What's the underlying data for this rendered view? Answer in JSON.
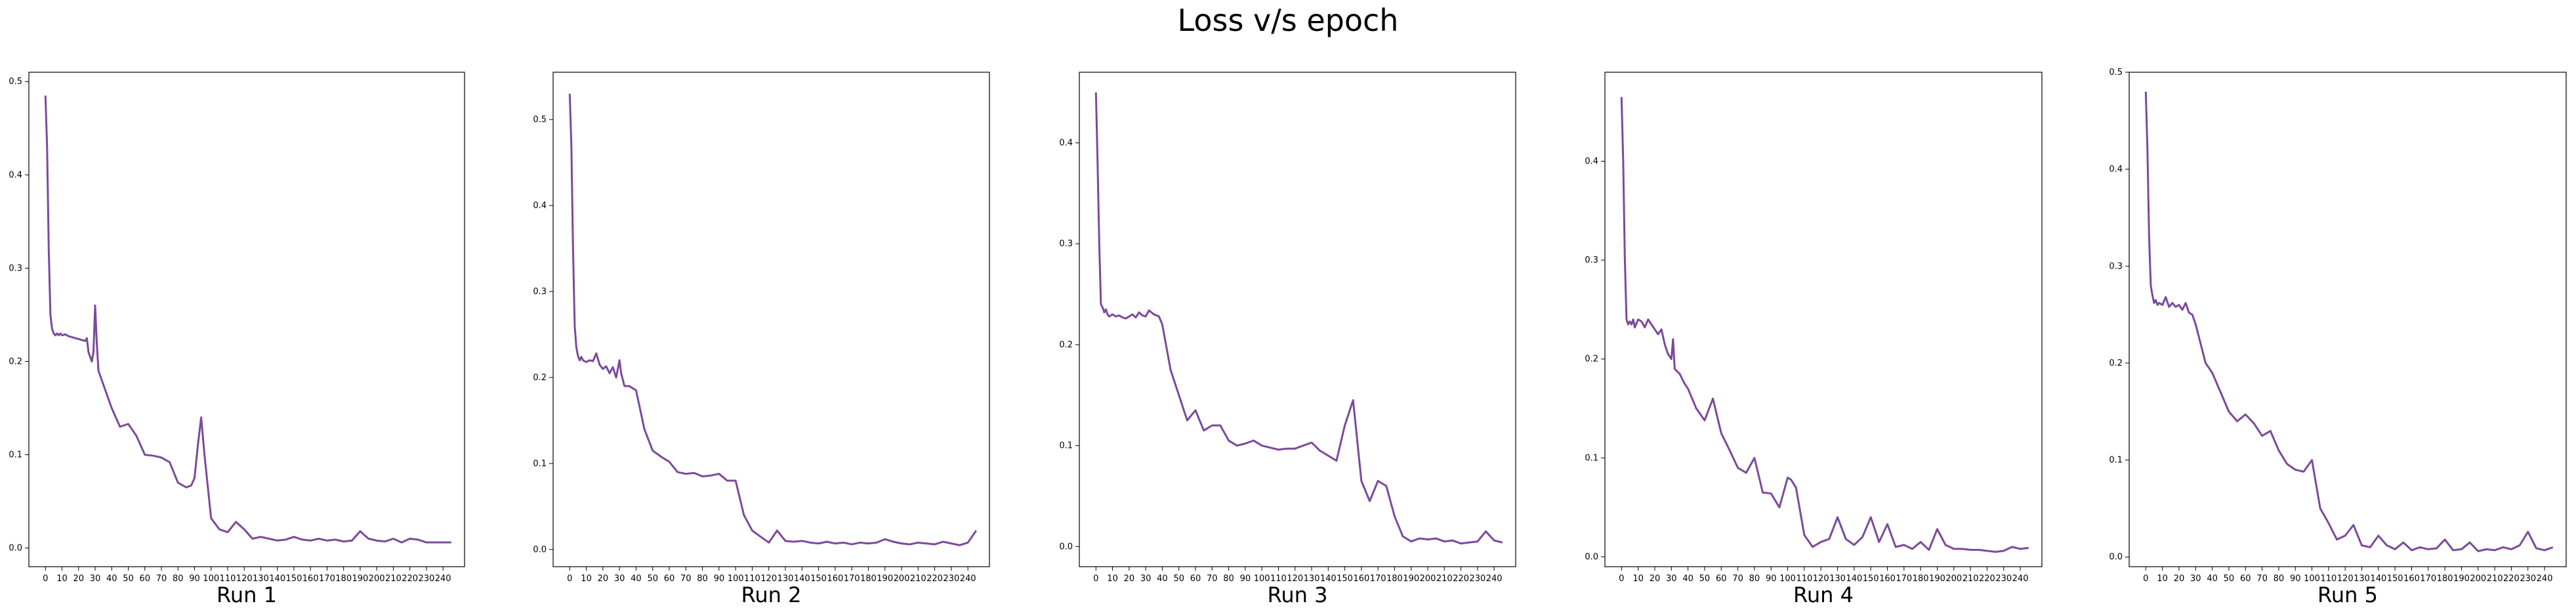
{
  "figure": {
    "title": "Loss v/s epoch"
  },
  "chart_data": [
    {
      "type": "line",
      "xlabel": "Run 1",
      "ylabel": "",
      "xlim": [
        -10,
        253
      ],
      "ylim": [
        -0.02,
        0.51
      ],
      "x_ticks": [
        0,
        10,
        20,
        30,
        40,
        50,
        60,
        70,
        80,
        90,
        100,
        110,
        120,
        130,
        140,
        150,
        160,
        170,
        180,
        190,
        200,
        210,
        220,
        230,
        240
      ],
      "y_ticks": [
        0.0,
        0.1,
        0.2,
        0.3,
        0.4,
        0.5
      ],
      "color": "#7b4a9c",
      "x": [
        0,
        1,
        2,
        3,
        4,
        5,
        6,
        7,
        8,
        9,
        10,
        12,
        14,
        16,
        18,
        20,
        22,
        24,
        25,
        26,
        27,
        28,
        29,
        30,
        31,
        32,
        35,
        38,
        40,
        45,
        50,
        55,
        60,
        65,
        70,
        75,
        80,
        85,
        88,
        90,
        92,
        94,
        96,
        100,
        105,
        110,
        115,
        120,
        125,
        130,
        135,
        140,
        145,
        150,
        155,
        160,
        165,
        170,
        175,
        180,
        185,
        190,
        195,
        200,
        205,
        210,
        215,
        220,
        225,
        230,
        235,
        240,
        245
      ],
      "y": [
        0.485,
        0.43,
        0.32,
        0.25,
        0.235,
        0.23,
        0.228,
        0.23,
        0.228,
        0.23,
        0.228,
        0.229,
        0.227,
        0.226,
        0.225,
        0.224,
        0.223,
        0.222,
        0.225,
        0.21,
        0.205,
        0.2,
        0.21,
        0.26,
        0.22,
        0.19,
        0.175,
        0.16,
        0.15,
        0.13,
        0.133,
        0.12,
        0.1,
        0.099,
        0.097,
        0.092,
        0.07,
        0.065,
        0.067,
        0.075,
        0.11,
        0.14,
        0.1,
        0.032,
        0.02,
        0.017,
        0.028,
        0.02,
        0.01,
        0.012,
        0.01,
        0.008,
        0.009,
        0.012,
        0.009,
        0.008,
        0.01,
        0.008,
        0.009,
        0.007,
        0.008,
        0.018,
        0.01,
        0.008,
        0.007,
        0.01,
        0.006,
        0.01,
        0.009,
        0.006,
        0.006,
        0.006,
        0.006
      ]
    },
    {
      "type": "line",
      "xlabel": "Run 2",
      "ylabel": "",
      "xlim": [
        -10,
        253
      ],
      "ylim": [
        -0.02,
        0.555
      ],
      "x_ticks": [
        0,
        10,
        20,
        30,
        40,
        50,
        60,
        70,
        80,
        90,
        100,
        110,
        120,
        130,
        140,
        150,
        160,
        170,
        180,
        190,
        200,
        210,
        220,
        230,
        240
      ],
      "y_ticks": [
        0.0,
        0.1,
        0.2,
        0.3,
        0.4,
        0.5
      ],
      "color": "#7b4a9c",
      "x": [
        0,
        1,
        2,
        3,
        4,
        5,
        6,
        7,
        8,
        10,
        12,
        14,
        16,
        18,
        20,
        22,
        24,
        26,
        28,
        30,
        31,
        33,
        36,
        40,
        45,
        50,
        55,
        60,
        65,
        70,
        75,
        80,
        85,
        90,
        95,
        100,
        105,
        110,
        115,
        120,
        125,
        130,
        135,
        140,
        145,
        150,
        155,
        160,
        165,
        170,
        175,
        180,
        185,
        190,
        195,
        200,
        205,
        210,
        215,
        220,
        225,
        230,
        235,
        240,
        245
      ],
      "y": [
        0.53,
        0.47,
        0.35,
        0.26,
        0.235,
        0.225,
        0.22,
        0.224,
        0.22,
        0.218,
        0.22,
        0.219,
        0.228,
        0.215,
        0.21,
        0.213,
        0.205,
        0.212,
        0.2,
        0.22,
        0.205,
        0.19,
        0.19,
        0.185,
        0.14,
        0.115,
        0.108,
        0.102,
        0.09,
        0.088,
        0.089,
        0.085,
        0.086,
        0.088,
        0.08,
        0.08,
        0.04,
        0.022,
        0.015,
        0.008,
        0.022,
        0.01,
        0.009,
        0.01,
        0.008,
        0.007,
        0.009,
        0.007,
        0.008,
        0.006,
        0.008,
        0.007,
        0.008,
        0.012,
        0.009,
        0.007,
        0.006,
        0.008,
        0.007,
        0.006,
        0.009,
        0.007,
        0.005,
        0.008,
        0.022
      ]
    },
    {
      "type": "line",
      "xlabel": "Run 3",
      "ylabel": "",
      "xlim": [
        -10,
        253
      ],
      "ylim": [
        -0.02,
        0.47
      ],
      "x_ticks": [
        0,
        10,
        20,
        30,
        40,
        50,
        60,
        70,
        80,
        90,
        100,
        110,
        120,
        130,
        140,
        150,
        160,
        170,
        180,
        190,
        200,
        210,
        220,
        230,
        240
      ],
      "y_ticks": [
        0.0,
        0.1,
        0.2,
        0.3,
        0.4
      ],
      "color": "#7b4a9c",
      "x": [
        0,
        1,
        2,
        3,
        4,
        5,
        6,
        7,
        8,
        10,
        12,
        14,
        16,
        18,
        20,
        22,
        24,
        26,
        28,
        30,
        32,
        35,
        38,
        40,
        45,
        50,
        55,
        60,
        65,
        70,
        75,
        80,
        85,
        90,
        95,
        100,
        105,
        110,
        115,
        120,
        125,
        130,
        135,
        140,
        145,
        150,
        155,
        160,
        165,
        170,
        175,
        180,
        185,
        190,
        195,
        200,
        205,
        210,
        215,
        220,
        225,
        230,
        235,
        240,
        245
      ],
      "y": [
        0.45,
        0.38,
        0.3,
        0.24,
        0.237,
        0.232,
        0.235,
        0.23,
        0.228,
        0.23,
        0.228,
        0.229,
        0.227,
        0.226,
        0.228,
        0.23,
        0.227,
        0.232,
        0.229,
        0.228,
        0.234,
        0.23,
        0.228,
        0.22,
        0.175,
        0.15,
        0.125,
        0.135,
        0.115,
        0.12,
        0.12,
        0.105,
        0.1,
        0.102,
        0.105,
        0.1,
        0.098,
        0.096,
        0.097,
        0.097,
        0.1,
        0.103,
        0.095,
        0.09,
        0.085,
        0.12,
        0.145,
        0.065,
        0.045,
        0.065,
        0.06,
        0.03,
        0.01,
        0.005,
        0.008,
        0.007,
        0.008,
        0.005,
        0.006,
        0.003,
        0.004,
        0.005,
        0.015,
        0.006,
        0.004
      ]
    },
    {
      "type": "line",
      "xlabel": "Run 4",
      "ylabel": "",
      "xlim": [
        -10,
        253
      ],
      "ylim": [
        -0.01,
        0.49
      ],
      "x_ticks": [
        0,
        10,
        20,
        30,
        40,
        50,
        60,
        70,
        80,
        90,
        100,
        110,
        120,
        130,
        140,
        150,
        160,
        170,
        180,
        190,
        200,
        210,
        220,
        230,
        240
      ],
      "y_ticks": [
        0.0,
        0.1,
        0.2,
        0.3,
        0.4
      ],
      "color": "#7b4a9c",
      "x": [
        0,
        1,
        2,
        3,
        4,
        5,
        6,
        7,
        8,
        10,
        12,
        14,
        16,
        18,
        20,
        22,
        24,
        26,
        28,
        30,
        31,
        32,
        35,
        38,
        40,
        45,
        50,
        55,
        60,
        65,
        70,
        75,
        80,
        85,
        90,
        95,
        100,
        102,
        105,
        110,
        115,
        120,
        125,
        130,
        135,
        140,
        145,
        150,
        155,
        160,
        165,
        170,
        175,
        180,
        185,
        190,
        195,
        200,
        205,
        210,
        215,
        220,
        225,
        230,
        235,
        240,
        245
      ],
      "y": [
        0.465,
        0.4,
        0.3,
        0.24,
        0.235,
        0.238,
        0.235,
        0.24,
        0.232,
        0.24,
        0.238,
        0.232,
        0.24,
        0.235,
        0.23,
        0.225,
        0.23,
        0.215,
        0.205,
        0.2,
        0.22,
        0.19,
        0.185,
        0.175,
        0.17,
        0.15,
        0.138,
        0.16,
        0.125,
        0.108,
        0.09,
        0.085,
        0.1,
        0.065,
        0.064,
        0.05,
        0.08,
        0.078,
        0.07,
        0.022,
        0.01,
        0.015,
        0.018,
        0.04,
        0.018,
        0.012,
        0.02,
        0.04,
        0.015,
        0.033,
        0.01,
        0.012,
        0.008,
        0.015,
        0.007,
        0.028,
        0.012,
        0.008,
        0.008,
        0.007,
        0.007,
        0.006,
        0.005,
        0.006,
        0.01,
        0.008,
        0.009
      ]
    },
    {
      "type": "line",
      "xlabel": "Run 5",
      "ylabel": "",
      "xlim": [
        -10,
        253
      ],
      "ylim": [
        -0.01,
        0.5
      ],
      "x_ticks": [
        0,
        10,
        20,
        30,
        40,
        50,
        60,
        70,
        80,
        90,
        100,
        110,
        120,
        130,
        140,
        150,
        160,
        170,
        180,
        190,
        200,
        210,
        220,
        230,
        240
      ],
      "y_ticks": [
        0.0,
        0.1,
        0.2,
        0.3,
        0.4,
        0.5
      ],
      "color": "#7b4a9c",
      "x": [
        0,
        1,
        2,
        3,
        4,
        5,
        6,
        7,
        8,
        10,
        12,
        14,
        16,
        18,
        20,
        22,
        24,
        26,
        28,
        30,
        33,
        36,
        40,
        45,
        50,
        55,
        60,
        65,
        70,
        75,
        80,
        85,
        90,
        95,
        100,
        105,
        110,
        115,
        120,
        125,
        130,
        135,
        140,
        145,
        150,
        155,
        160,
        165,
        170,
        175,
        180,
        185,
        190,
        195,
        200,
        205,
        210,
        215,
        220,
        225,
        230,
        235,
        240,
        245
      ],
      "y": [
        0.48,
        0.42,
        0.33,
        0.28,
        0.27,
        0.262,
        0.265,
        0.26,
        0.262,
        0.26,
        0.268,
        0.258,
        0.262,
        0.258,
        0.26,
        0.255,
        0.262,
        0.252,
        0.25,
        0.24,
        0.22,
        0.2,
        0.19,
        0.17,
        0.15,
        0.14,
        0.147,
        0.138,
        0.125,
        0.13,
        0.11,
        0.096,
        0.09,
        0.088,
        0.1,
        0.05,
        0.035,
        0.018,
        0.022,
        0.033,
        0.012,
        0.01,
        0.022,
        0.012,
        0.008,
        0.015,
        0.007,
        0.01,
        0.008,
        0.009,
        0.018,
        0.007,
        0.008,
        0.015,
        0.006,
        0.008,
        0.007,
        0.01,
        0.008,
        0.012,
        0.026,
        0.009,
        0.007,
        0.01
      ]
    }
  ]
}
